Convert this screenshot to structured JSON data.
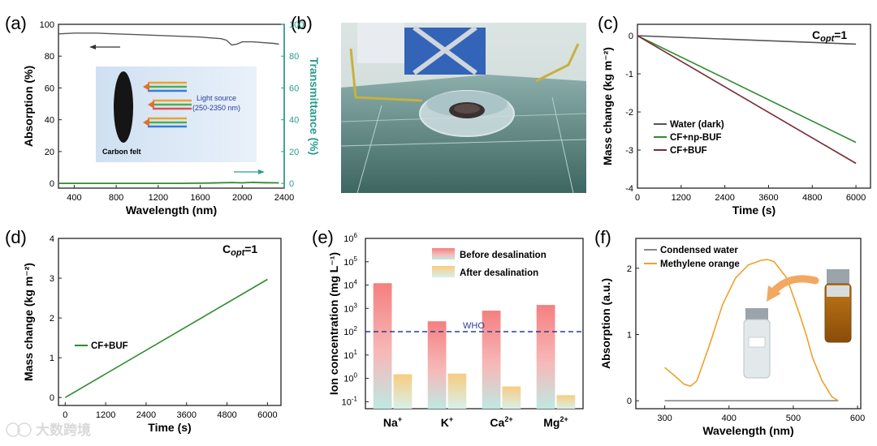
{
  "colors": {
    "teal": "#2a9d8f",
    "green": "#2e8b2e",
    "maroon": "#7a2b33",
    "gray": "#888888",
    "orange": "#f0a030",
    "red_bar": "#f08080",
    "navy": "#2a3b9a"
  },
  "panels": {
    "a": {
      "letter": "(a)",
      "inset_label": "Carbon felt",
      "inset_source": [
        "Light source",
        "(250-2350 nm)"
      ]
    },
    "b": {
      "letter": "(b)"
    },
    "c": {
      "letter": "(c)",
      "copt": "=1"
    },
    "d": {
      "letter": "(d)",
      "copt": "=1"
    },
    "e": {
      "letter": "(e)",
      "who_label": "WHO"
    },
    "f": {
      "letter": "(f)"
    }
  },
  "watermark": "大数跨境",
  "chart_data": [
    {
      "panel": "a",
      "type": "line",
      "xlabel": "Wavelength (nm)",
      "ylabel": "Absorption (%)",
      "y2label": "Transmittance (%)",
      "xlim": [
        250,
        2400
      ],
      "ylim": [
        -3,
        100
      ],
      "y2lim": [
        -3,
        100
      ],
      "xticks": [
        400,
        800,
        1200,
        1600,
        2000,
        2400
      ],
      "yticks": [
        0,
        20,
        40,
        60,
        80,
        100
      ],
      "series": [
        {
          "axis": "left",
          "color": "#555555",
          "x": [
            250,
            400,
            600,
            800,
            1000,
            1200,
            1400,
            1600,
            1800,
            1850,
            1900,
            1950,
            2000,
            2100,
            2200,
            2300,
            2350
          ],
          "y": [
            94,
            94.5,
            94.5,
            94,
            93.5,
            93,
            92.5,
            92,
            91,
            90,
            87,
            87.5,
            89,
            89,
            88.5,
            88,
            87.5
          ]
        },
        {
          "axis": "right",
          "color": "#2e8b2e",
          "x": [
            250,
            600,
            1000,
            1400,
            1700,
            1900,
            2000,
            2100,
            2200,
            2350
          ],
          "y": [
            0,
            0,
            0,
            0,
            0.2,
            0.5,
            0.3,
            0.6,
            0.4,
            0.3
          ]
        }
      ]
    },
    {
      "panel": "c",
      "type": "line",
      "xlabel": "Time (s)",
      "ylabel": "Mass change (kg m⁻²)",
      "xlim": [
        0,
        6400
      ],
      "ylim": [
        -4,
        0.3
      ],
      "xticks": [
        0,
        1200,
        2400,
        3600,
        4800,
        6000
      ],
      "yticks": [
        0,
        -1,
        -2,
        -3,
        -4
      ],
      "legend_position": "bottom-left",
      "series": [
        {
          "name": "Water (dark)",
          "color": "#555555",
          "x": [
            0,
            6000
          ],
          "y": [
            0,
            -0.22
          ]
        },
        {
          "name": "CF+np-BUF",
          "color": "#2e8b2e",
          "x": [
            0,
            6000
          ],
          "y": [
            0,
            -2.8
          ]
        },
        {
          "name": "CF+BUF",
          "color": "#7a2b33",
          "x": [
            0,
            6000
          ],
          "y": [
            0,
            -3.35
          ]
        }
      ]
    },
    {
      "panel": "d",
      "type": "line",
      "xlabel": "Time (s)",
      "ylabel": "Mass change (kg m⁻²)",
      "xlim": [
        -200,
        6400
      ],
      "ylim": [
        -0.2,
        4
      ],
      "xticks": [
        0,
        1200,
        2400,
        3600,
        4800,
        6000
      ],
      "yticks": [
        0,
        1,
        2,
        3,
        4
      ],
      "legend_position": "middle-left",
      "series": [
        {
          "name": "CF+BUF",
          "color": "#2e8b2e",
          "x": [
            0,
            6000
          ],
          "y": [
            0,
            2.97
          ]
        }
      ]
    },
    {
      "panel": "e",
      "type": "bar",
      "ylabel": "Ion concentration (mg L⁻¹)",
      "yscale": "log",
      "ylim": [
        0.05,
        1000000
      ],
      "yticks_exp": [
        -1,
        0,
        1,
        2,
        3,
        4,
        5,
        6
      ],
      "categories": [
        "Na",
        "K",
        "Ca",
        "Mg"
      ],
      "category_sup": [
        "+",
        "+",
        "2+",
        "2+"
      ],
      "who_line": 100,
      "series": [
        {
          "name": "Before desalination",
          "values": [
            12000,
            280,
            800,
            1400
          ]
        },
        {
          "name": "After desalination",
          "values": [
            1.5,
            1.6,
            0.45,
            0.19
          ]
        }
      ]
    },
    {
      "panel": "f",
      "type": "line",
      "xlabel": "Wavelength (nm)",
      "ylabel": "Absorption (a.u.)",
      "xlim": [
        255,
        605
      ],
      "ylim": [
        -0.12,
        2.45
      ],
      "xticks": [
        300,
        400,
        500,
        600
      ],
      "yticks": [
        0,
        1,
        2
      ],
      "legend_position": "top-left",
      "series": [
        {
          "name": "Condensed water",
          "color": "#888888",
          "x": [
            300,
            570
          ],
          "y": [
            0,
            0
          ]
        },
        {
          "name": "Methylene orange",
          "color": "#f0a030",
          "x": [
            300,
            315,
            330,
            340,
            350,
            370,
            390,
            410,
            430,
            450,
            460,
            470,
            490,
            510,
            520,
            530,
            545,
            560,
            570
          ],
          "y": [
            0.5,
            0.38,
            0.25,
            0.22,
            0.3,
            0.85,
            1.45,
            1.85,
            2.05,
            2.12,
            2.13,
            2.1,
            1.85,
            1.3,
            1.0,
            0.65,
            0.3,
            0.06,
            0.0
          ]
        }
      ]
    }
  ]
}
